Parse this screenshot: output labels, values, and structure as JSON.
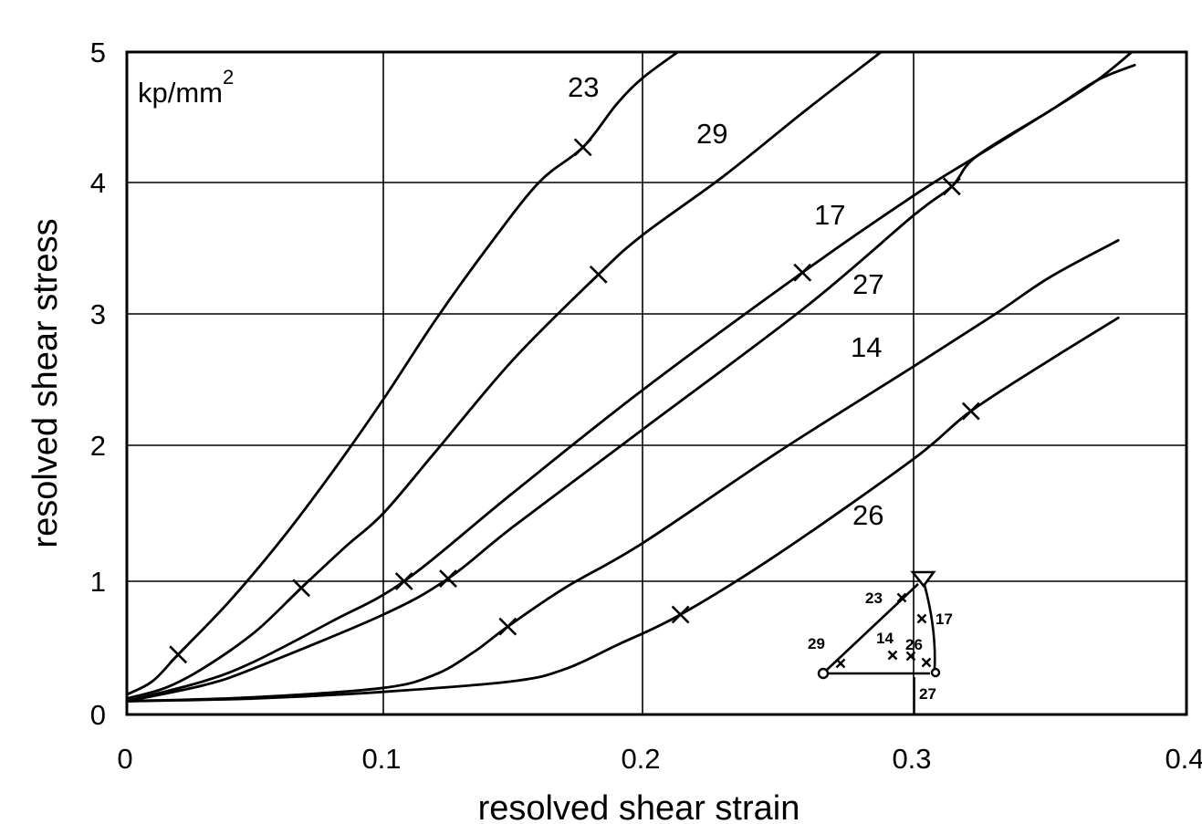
{
  "chart_data": {
    "type": "line",
    "title": "",
    "xlabel": "resolved shear strain",
    "ylabel": "resolved shear stress",
    "unit_label": "kp/mm",
    "unit_superscript": "2",
    "xlim": [
      0,
      0.4
    ],
    "ylim": [
      0,
      5
    ],
    "x_ticks": [
      "0",
      "0.1",
      "0.2",
      "0.3",
      "0.4"
    ],
    "y_ticks": [
      "0",
      "1",
      "2",
      "3",
      "4",
      "5"
    ],
    "grid": true,
    "legend": "none (curves labelled directly)",
    "series": [
      {
        "name": "23",
        "x": [
          0,
          0.01,
          0.02,
          0.04,
          0.06,
          0.08,
          0.1,
          0.12,
          0.14,
          0.16,
          0.177,
          0.19,
          0.2,
          0.213
        ],
        "y": [
          0.15,
          0.25,
          0.45,
          0.85,
          1.3,
          1.8,
          2.35,
          2.95,
          3.5,
          4.0,
          4.27,
          4.6,
          4.8,
          5.0
        ],
        "markers_x": [
          0.02,
          0.177
        ]
      },
      {
        "name": "29",
        "x": [
          0,
          0.015,
          0.03,
          0.05,
          0.068,
          0.085,
          0.1,
          0.12,
          0.15,
          0.183,
          0.2,
          0.23,
          0.26,
          0.288
        ],
        "y": [
          0.12,
          0.2,
          0.35,
          0.62,
          0.95,
          1.25,
          1.5,
          1.95,
          2.65,
          3.3,
          3.6,
          4.05,
          4.55,
          5.0
        ],
        "markers_x": [
          0.068,
          0.183
        ]
      },
      {
        "name": "17",
        "x": [
          0,
          0.03,
          0.05,
          0.08,
          0.108,
          0.15,
          0.2,
          0.26,
          0.3,
          0.323,
          0.35,
          0.367,
          0.381
        ],
        "y": [
          0.1,
          0.25,
          0.4,
          0.7,
          1.0,
          1.65,
          2.42,
          3.33,
          3.9,
          4.2,
          4.55,
          4.78,
          4.9
        ],
        "markers_x": [
          0.108,
          0.259
        ]
      },
      {
        "name": "27",
        "x": [
          0,
          0.03,
          0.05,
          0.1,
          0.125,
          0.15,
          0.2,
          0.26,
          0.3,
          0.314,
          0.323,
          0.35,
          0.367,
          0.38
        ],
        "y": [
          0.1,
          0.22,
          0.35,
          0.75,
          1.02,
          1.4,
          2.12,
          3.05,
          3.75,
          3.97,
          4.2,
          4.55,
          4.78,
          5.0
        ],
        "markers_x": [
          0.125,
          0.314
        ]
      },
      {
        "name": "14",
        "x": [
          0,
          0.05,
          0.1,
          0.12,
          0.135,
          0.148,
          0.17,
          0.2,
          0.25,
          0.3,
          0.33,
          0.35,
          0.375
        ],
        "y": [
          0.1,
          0.13,
          0.2,
          0.3,
          0.47,
          0.66,
          0.95,
          1.28,
          1.95,
          2.6,
          3.0,
          3.28,
          3.56
        ],
        "markers_x": [
          0.148
        ]
      },
      {
        "name": "26",
        "x": [
          0,
          0.05,
          0.1,
          0.15,
          0.17,
          0.19,
          0.214,
          0.25,
          0.3,
          0.321,
          0.35,
          0.375
        ],
        "y": [
          0.1,
          0.12,
          0.17,
          0.25,
          0.34,
          0.52,
          0.75,
          1.2,
          1.9,
          2.26,
          2.65,
          2.97
        ],
        "markers_x": [
          0.214,
          0.321
        ]
      }
    ],
    "inset": {
      "description_type": "stereographic triangle",
      "labels": [
        "23",
        "17",
        "29",
        "14",
        "26",
        "27"
      ]
    }
  }
}
